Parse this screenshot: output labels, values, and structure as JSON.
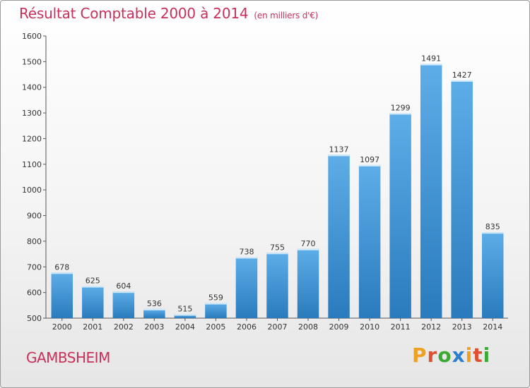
{
  "header": {
    "title": "Résultat Comptable 2000 à 2014",
    "subtitle": "(en milliers d'€)"
  },
  "footer": {
    "place": "GAMBSHEIM",
    "logo": {
      "letters": [
        "P",
        "r",
        "o",
        "x",
        "i",
        "t",
        "i"
      ],
      "colors": [
        "#f0a020",
        "#e05030",
        "#3aaa35",
        "#2a7fd0",
        "#f0a020",
        "#e05030",
        "#3aaa35"
      ]
    }
  },
  "colors": {
    "bar_light": "#5dade8",
    "bar_dark": "#2a7bbd",
    "title": "#c8305a"
  },
  "chart_data": {
    "type": "bar",
    "categories": [
      "2000",
      "2001",
      "2002",
      "2003",
      "2004",
      "2005",
      "2006",
      "2007",
      "2008",
      "2009",
      "2010",
      "2011",
      "2012",
      "2013",
      "2014"
    ],
    "values": [
      678,
      625,
      604,
      536,
      515,
      559,
      738,
      755,
      770,
      1137,
      1097,
      1299,
      1491,
      1427,
      835
    ],
    "ylim": [
      500,
      1600
    ],
    "yticks": [
      500,
      600,
      700,
      800,
      900,
      1000,
      1100,
      1200,
      1300,
      1400,
      1500,
      1600
    ],
    "grid": false,
    "data_labels": true
  }
}
